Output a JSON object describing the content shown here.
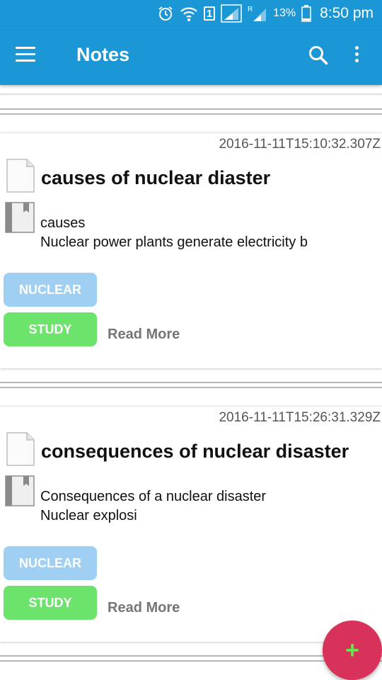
{
  "status_bar": {
    "sim_label": "1",
    "roaming_label": "R",
    "battery_percent": "13%",
    "time": "8:50 pm",
    "icons": [
      "alarm-icon",
      "wifi-icon",
      "sim-icon",
      "signal-icon",
      "signal-roaming-icon",
      "battery-icon"
    ]
  },
  "app_bar": {
    "title": "Notes",
    "icons": [
      "menu-icon",
      "search-icon",
      "overflow-icon"
    ]
  },
  "notes": [
    {
      "date": "2016-11-11T15:10:32.307Z",
      "title": "causes of nuclear diaster",
      "body_line1": "causes",
      "body_line2": "Nuclear power plants generate electricity b",
      "tags": [
        "NUCLEAR",
        "STUDY"
      ],
      "read_more": "Read More"
    },
    {
      "date": "2016-11-11T15:26:31.329Z",
      "title": "consequences of nuclear disaster",
      "body_line1": "Consequences of a nuclear disaster",
      "body_line2": "Nuclear explosi",
      "tags": [
        "NUCLEAR",
        "STUDY"
      ],
      "read_more": "Read More"
    }
  ],
  "fab": {
    "label": "+"
  },
  "colors": {
    "app_bar": "#1a97d4",
    "tag_nuclear": "#9fcff2",
    "tag_study": "#6ce36a",
    "fab": "#d9325a",
    "fab_icon": "#61e84e"
  }
}
